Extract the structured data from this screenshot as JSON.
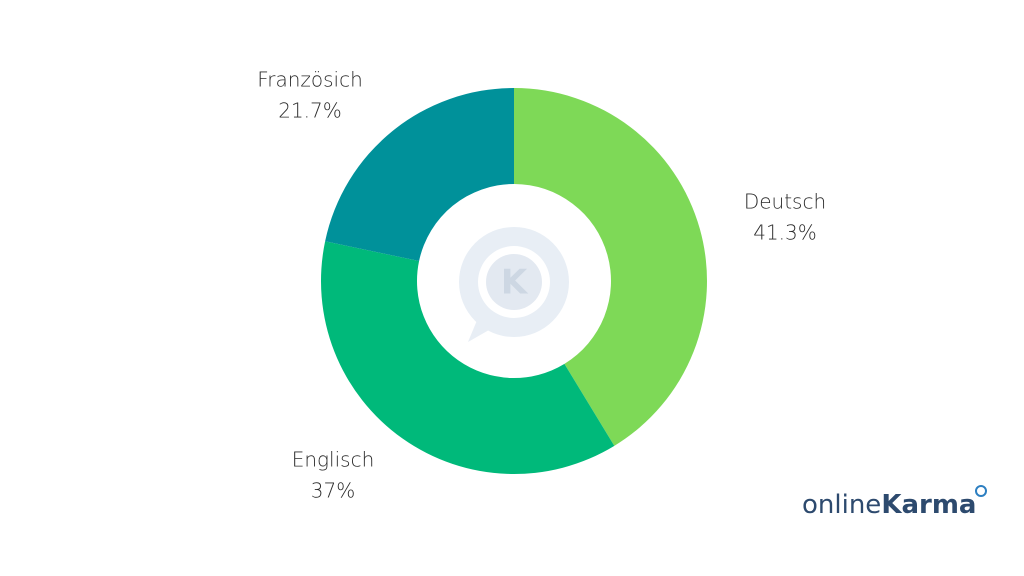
{
  "chart_data": {
    "type": "pie",
    "donut": true,
    "categories": [
      "Deutsch",
      "Englisch",
      "Französich"
    ],
    "values": [
      41.3,
      37,
      21.7
    ],
    "value_labels": [
      "41.3%",
      "37%",
      "21.7%"
    ],
    "colors": [
      "#7ed957",
      "#00b97a",
      "#00919a"
    ]
  },
  "watermark": "K",
  "logo": {
    "prefix": "online",
    "name": "Karma"
  }
}
